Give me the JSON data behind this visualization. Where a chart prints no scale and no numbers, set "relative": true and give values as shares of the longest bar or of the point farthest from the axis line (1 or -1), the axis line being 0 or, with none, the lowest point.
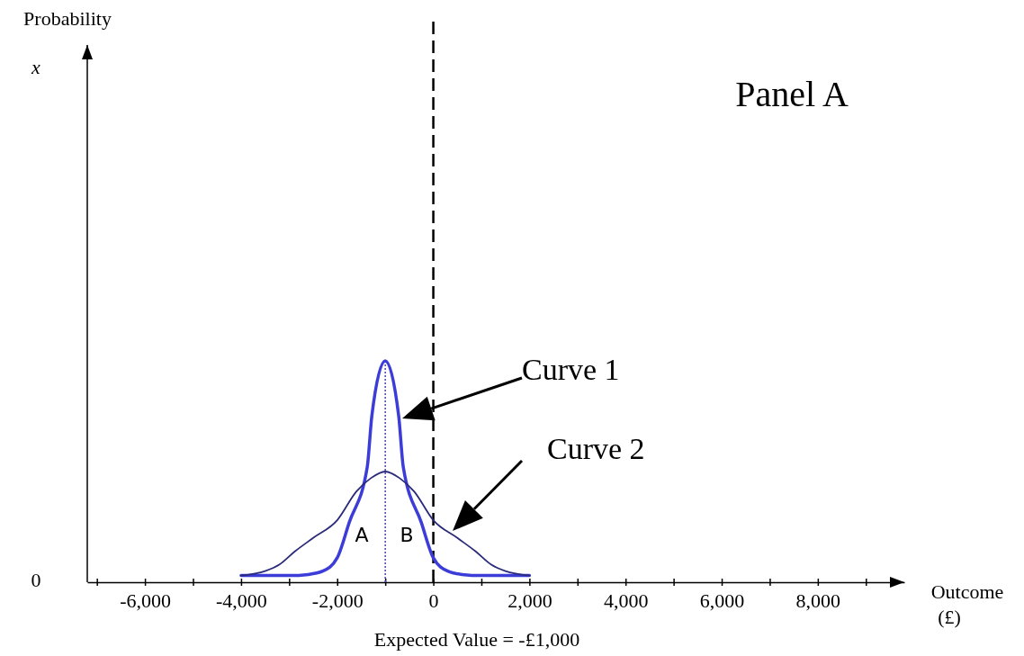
{
  "chart_data": {
    "type": "line",
    "relative": true,
    "xlabel": "Outcome (£)",
    "xlim": [
      -7200,
      9800
    ],
    "xticks": [
      {
        "value": -7000,
        "label": null
      },
      {
        "value": -6000,
        "label": "-6,000"
      },
      {
        "value": -5000,
        "label": null
      },
      {
        "value": -4000,
        "label": "-4,000"
      },
      {
        "value": -3000,
        "label": null
      },
      {
        "value": -2000,
        "label": "-2,000"
      },
      {
        "value": -1000,
        "label": null
      },
      {
        "value": 0,
        "label": "0"
      },
      {
        "value": 1000,
        "label": null
      },
      {
        "value": 2000,
        "label": "2,000"
      },
      {
        "value": 3000,
        "label": null
      },
      {
        "value": 4000,
        "label": "4,000"
      },
      {
        "value": 5000,
        "label": null
      },
      {
        "value": 6000,
        "label": "6,000"
      },
      {
        "value": 7000,
        "label": null
      },
      {
        "value": 8000,
        "label": "8,000"
      },
      {
        "value": 9000,
        "label": null
      }
    ],
    "series": [
      {
        "color": "#3c3cd8",
        "x": [
          -4000,
          -3000,
          -2600,
          -2300,
          -2000,
          -1750,
          -1375,
          -1280,
          -1000,
          -720,
          -625,
          -250,
          0,
          300,
          600,
          1000,
          2000
        ],
        "values": [
          0.03,
          0.03,
          0.035,
          0.05,
          0.11,
          0.27,
          0.52,
          0.75,
          1,
          0.75,
          0.52,
          0.27,
          0.11,
          0.05,
          0.035,
          0.03,
          0.03
        ]
      },
      {
        "color": "#2a2a7a",
        "x": [
          -4000,
          -3500,
          -3200,
          -2875,
          -2500,
          -2000,
          -1600,
          -1300,
          -1000,
          -700,
          -400,
          0,
          500,
          875,
          1200,
          1500,
          2000
        ],
        "values": [
          0.03,
          0.05,
          0.08,
          0.14,
          0.2,
          0.28,
          0.41,
          0.47,
          0.5,
          0.47,
          0.41,
          0.28,
          0.2,
          0.14,
          0.08,
          0.05,
          0.03
        ]
      }
    ],
    "ref_lines": [
      {
        "axis": "x",
        "value": 0,
        "color": "#000000",
        "line_style": "dashed"
      },
      {
        "axis": "x",
        "value": -1000,
        "color": "#4444cc",
        "line_style": "dotted"
      }
    ],
    "annotations": [
      "Probability",
      "Panel A",
      "Curve 1",
      "Curve 2",
      "A",
      "B",
      "x",
      "0",
      "Expected Value = -£1,000"
    ]
  }
}
